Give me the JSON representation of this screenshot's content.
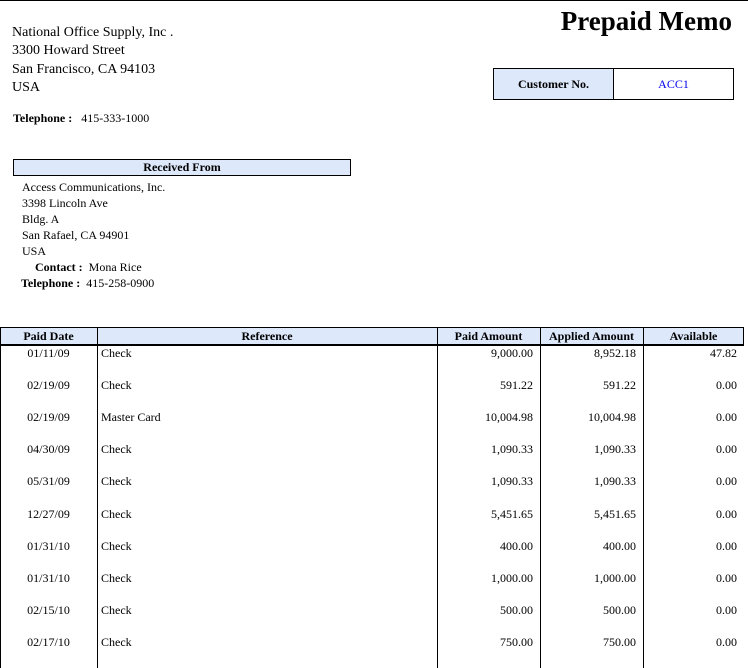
{
  "title": "Prepaid Memo",
  "company": {
    "name": "National Office Supply, Inc .",
    "street": "3300  Howard Street",
    "city": "San Francisco, CA 94103",
    "country": "USA",
    "telephone_label": "Telephone :",
    "telephone": "415-333-1000"
  },
  "customer": {
    "label": "Customer No.",
    "value": "ACC1"
  },
  "received_from": {
    "label": "Received From",
    "name": "Access Communications, Inc.",
    "street": "3398  Lincoln Ave",
    "street2": "Bldg. A",
    "city": "San Rafael, CA  94901",
    "country": "USA",
    "contact_label": "Contact :",
    "contact": "Mona Rice",
    "telephone_label": "Telephone :",
    "telephone": "415-258-0900"
  },
  "colors": {
    "header_bg": "#dde9fb",
    "link": "#0000ee"
  },
  "table": {
    "headers": [
      "Paid Date",
      "Reference",
      "Paid Amount",
      "Applied Amount",
      "Available"
    ],
    "rows": [
      [
        "01/11/09",
        "Check",
        "9,000.00",
        "8,952.18",
        "47.82"
      ],
      [
        "02/19/09",
        "Check",
        "591.22",
        "591.22",
        "0.00"
      ],
      [
        "02/19/09",
        "Master Card",
        "10,004.98",
        "10,004.98",
        "0.00"
      ],
      [
        "04/30/09",
        "Check",
        "1,090.33",
        "1,090.33",
        "0.00"
      ],
      [
        "05/31/09",
        "Check",
        "1,090.33",
        "1,090.33",
        "0.00"
      ],
      [
        "12/27/09",
        "Check",
        "5,451.65",
        "5,451.65",
        "0.00"
      ],
      [
        "01/31/10",
        "Check",
        "400.00",
        "400.00",
        "0.00"
      ],
      [
        "01/31/10",
        "Check",
        "1,000.00",
        "1,000.00",
        "0.00"
      ],
      [
        "02/15/10",
        "Check",
        "500.00",
        "500.00",
        "0.00"
      ],
      [
        "02/17/10",
        "Check",
        "750.00",
        "750.00",
        "0.00"
      ]
    ]
  }
}
